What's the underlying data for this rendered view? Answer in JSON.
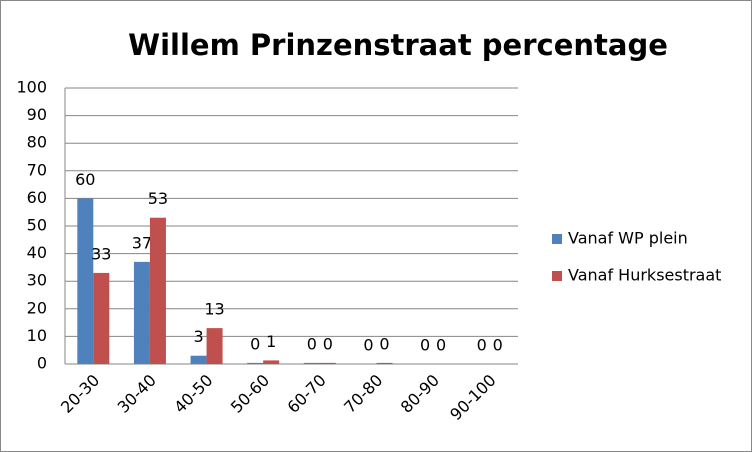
{
  "chart_data": {
    "type": "bar",
    "title": "Willem Prinzenstraat percentage",
    "categories": [
      "20-30",
      "30-40",
      "40-50",
      "50-60",
      "60-70",
      "70-80",
      "80-90",
      "90-100"
    ],
    "series": [
      {
        "name": "Vanaf WP plein",
        "color": "#4f81bd",
        "values": [
          60,
          37,
          3,
          0.4,
          0.4,
          0,
          0,
          0
        ],
        "value_labels": [
          "60",
          "37",
          "3",
          "0",
          "0",
          "0",
          "0",
          "0"
        ]
      },
      {
        "name": "Vanaf Hurksestraat",
        "color": "#c0504d",
        "values": [
          33,
          53,
          13,
          1.3,
          0.4,
          0.4,
          0,
          0
        ],
        "value_labels": [
          "33",
          "53",
          "13",
          "1",
          "0",
          "0",
          "0",
          "0"
        ]
      }
    ],
    "ylim": [
      0,
      100
    ],
    "yticks": [
      0,
      10,
      20,
      30,
      40,
      50,
      60,
      70,
      80,
      90,
      100
    ],
    "grid": true,
    "legend": "right"
  }
}
